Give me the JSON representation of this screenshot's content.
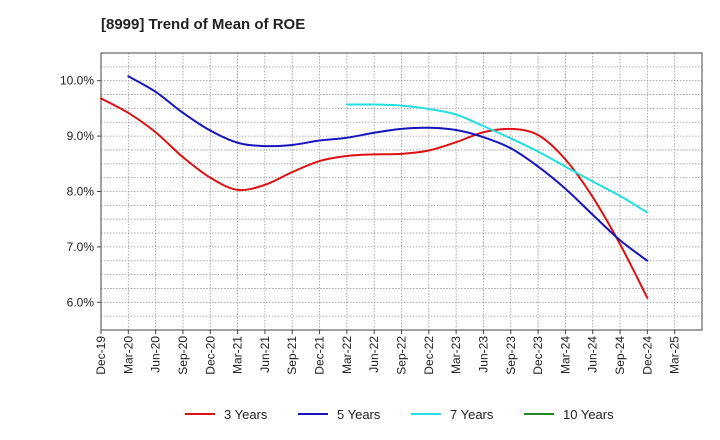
{
  "chart_data": {
    "type": "line",
    "title": "[8999]  Trend of Mean of ROE",
    "xlabel": "",
    "ylabel": "",
    "x_ticks": [
      "Dec-19",
      "Mar-20",
      "Jun-20",
      "Sep-20",
      "Dec-20",
      "Mar-21",
      "Jun-21",
      "Sep-21",
      "Dec-21",
      "Mar-22",
      "Jun-22",
      "Sep-22",
      "Dec-22",
      "Mar-23",
      "Jun-23",
      "Sep-23",
      "Dec-23",
      "Mar-24",
      "Jun-24",
      "Sep-24",
      "Dec-24",
      "Mar-25"
    ],
    "y_ticks": [
      6.0,
      7.0,
      8.0,
      9.0,
      10.0
    ],
    "y_tick_labels": [
      "6.0%",
      "7.0%",
      "8.0%",
      "9.0%",
      "10.0%"
    ],
    "ylim": [
      5.5,
      10.5
    ],
    "grid": true,
    "legend_position": "bottom",
    "series": [
      {
        "name": "3 Years",
        "color": "#dd1111",
        "start_index": 0,
        "values": [
          9.68,
          9.42,
          9.07,
          8.62,
          8.25,
          8.03,
          8.12,
          8.35,
          8.55,
          8.64,
          8.67,
          8.68,
          8.74,
          8.89,
          9.07,
          9.13,
          9.02,
          8.58,
          7.9,
          7.05,
          6.08
        ]
      },
      {
        "name": "5 Years",
        "color": "#1515bb",
        "start_index": 1,
        "values": [
          10.08,
          9.8,
          9.42,
          9.1,
          8.88,
          8.82,
          8.84,
          8.92,
          8.97,
          9.06,
          9.13,
          9.15,
          9.11,
          8.98,
          8.78,
          8.45,
          8.05,
          7.58,
          7.12,
          6.75
        ]
      },
      {
        "name": "7 Years",
        "color": "#22e0e0",
        "start_index": 9,
        "values": [
          9.57,
          9.57,
          9.55,
          9.49,
          9.39,
          9.18,
          8.96,
          8.72,
          8.45,
          8.18,
          7.92,
          7.62
        ]
      },
      {
        "name": "10 Years",
        "color": "#228b22",
        "start_index": 0,
        "values": []
      }
    ]
  }
}
